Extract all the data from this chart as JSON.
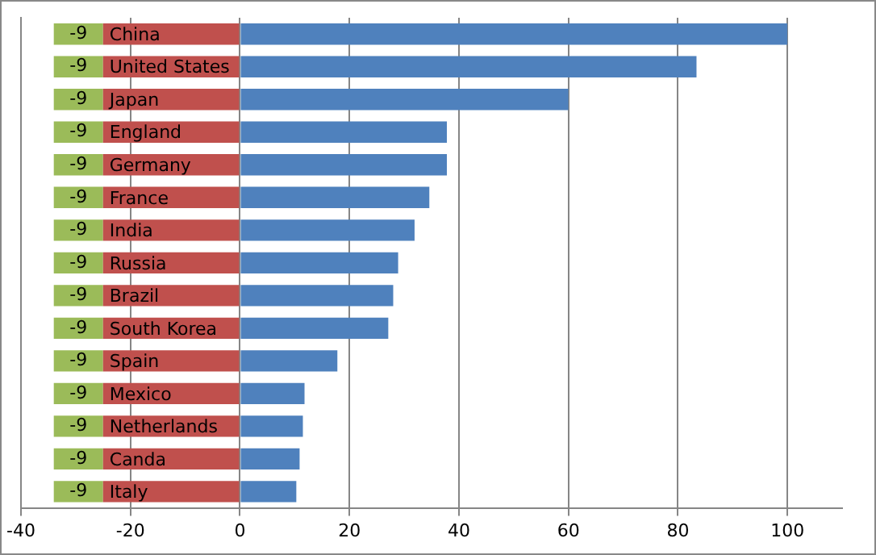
{
  "chart_data": {
    "type": "bar",
    "orientation": "horizontal",
    "stacked": true,
    "categories": [
      "China",
      "United States",
      "Japan",
      "England",
      "Germany",
      "France",
      "India",
      "Russia",
      "Brazil",
      "South Korea",
      "Spain",
      "Mexico",
      "Netherlands",
      "Canda",
      "Italy"
    ],
    "series": [
      {
        "color": "#c0504d",
        "values": [
          -25,
          -25,
          -25,
          -25,
          -25,
          -25,
          -25,
          -25,
          -25,
          -25,
          -25,
          -25,
          -25,
          -25,
          -25
        ]
      },
      {
        "color": "#9bbb59",
        "values": [
          -9,
          -9,
          -9,
          -9,
          -9,
          -9,
          -9,
          -9,
          -9,
          -9,
          -9,
          -9,
          -9,
          -9,
          -9
        ],
        "value_labels": [
          "-9",
          "-9",
          "-9",
          "-9",
          "-9",
          "-9",
          "-9",
          "-9",
          "-9",
          "-9",
          "-9",
          "-9",
          "-9",
          "-9",
          "-9"
        ]
      },
      {
        "color": "#4f81bd",
        "values": [
          100,
          83.4,
          60,
          37.8,
          37.8,
          34.6,
          31.9,
          28.9,
          28,
          27.1,
          17.8,
          11.8,
          11.5,
          10.9,
          10.3
        ]
      }
    ],
    "xlim": [
      -40,
      110
    ],
    "xticks": [
      -40,
      -20,
      0,
      20,
      40,
      60,
      80,
      100
    ],
    "grid": "x",
    "tick_labels": "x",
    "legend": false
  }
}
